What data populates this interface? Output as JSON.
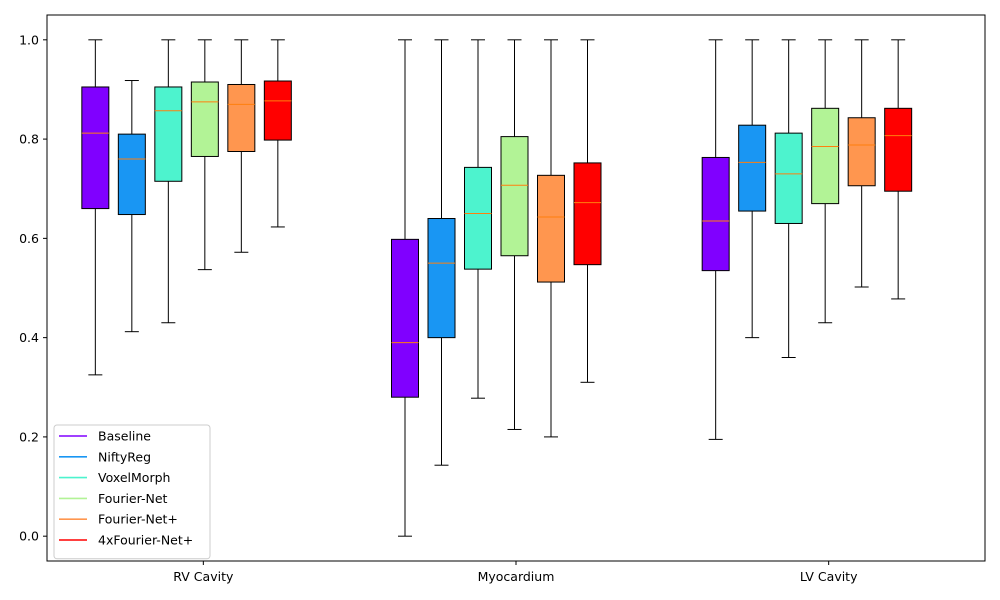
{
  "chart_data": {
    "type": "boxplot",
    "categories": [
      "RV Cavity",
      "Myocardium",
      "LV Cavity"
    ],
    "ylim": [
      -0.05,
      1.05
    ],
    "yticks": [
      0.0,
      0.2,
      0.4,
      0.6,
      0.8,
      1.0
    ],
    "ytick_labels": [
      "0.0",
      "0.2",
      "0.4",
      "0.6",
      "0.8",
      "1.0"
    ],
    "grid": false,
    "legend_position": "lower-left",
    "median_color": "#ff7f0e",
    "series": [
      {
        "name": "Baseline",
        "color": "#8000ff",
        "boxes": [
          {
            "min": 0.325,
            "q1": 0.66,
            "median": 0.812,
            "q3": 0.905,
            "max": 1.0
          },
          {
            "min": 0.0,
            "q1": 0.28,
            "median": 0.39,
            "q3": 0.598,
            "max": 1.0
          },
          {
            "min": 0.195,
            "q1": 0.535,
            "median": 0.635,
            "q3": 0.763,
            "max": 1.0
          }
        ]
      },
      {
        "name": "NiftyReg",
        "color": "#1996f3",
        "boxes": [
          {
            "min": 0.412,
            "q1": 0.648,
            "median": 0.76,
            "q3": 0.81,
            "max": 0.918
          },
          {
            "min": 0.143,
            "q1": 0.4,
            "median": 0.55,
            "q3": 0.64,
            "max": 1.0
          },
          {
            "min": 0.4,
            "q1": 0.655,
            "median": 0.753,
            "q3": 0.828,
            "max": 1.0
          }
        ]
      },
      {
        "name": "VoxelMorph",
        "color": "#4df3ce",
        "boxes": [
          {
            "min": 0.43,
            "q1": 0.715,
            "median": 0.857,
            "q3": 0.905,
            "max": 1.0
          },
          {
            "min": 0.278,
            "q1": 0.538,
            "median": 0.65,
            "q3": 0.743,
            "max": 1.0
          },
          {
            "min": 0.36,
            "q1": 0.63,
            "median": 0.73,
            "q3": 0.812,
            "max": 1.0
          }
        ]
      },
      {
        "name": "Fourier-Net",
        "color": "#b2f396",
        "boxes": [
          {
            "min": 0.537,
            "q1": 0.765,
            "median": 0.875,
            "q3": 0.915,
            "max": 1.0
          },
          {
            "min": 0.215,
            "q1": 0.565,
            "median": 0.707,
            "q3": 0.805,
            "max": 1.0
          },
          {
            "min": 0.43,
            "q1": 0.67,
            "median": 0.785,
            "q3": 0.862,
            "max": 1.0
          }
        ]
      },
      {
        "name": "Fourier-Net+",
        "color": "#ff964f",
        "boxes": [
          {
            "min": 0.572,
            "q1": 0.775,
            "median": 0.87,
            "q3": 0.91,
            "max": 1.0
          },
          {
            "min": 0.2,
            "q1": 0.512,
            "median": 0.643,
            "q3": 0.727,
            "max": 1.0
          },
          {
            "min": 0.502,
            "q1": 0.706,
            "median": 0.788,
            "q3": 0.843,
            "max": 1.0
          }
        ]
      },
      {
        "name": "4xFourier-Net+",
        "color": "#ff0000",
        "boxes": [
          {
            "min": 0.623,
            "q1": 0.798,
            "median": 0.877,
            "q3": 0.917,
            "max": 1.0
          },
          {
            "min": 0.31,
            "q1": 0.547,
            "median": 0.672,
            "q3": 0.752,
            "max": 1.0
          },
          {
            "min": 0.478,
            "q1": 0.695,
            "median": 0.807,
            "q3": 0.862,
            "max": 1.0
          }
        ]
      }
    ]
  }
}
